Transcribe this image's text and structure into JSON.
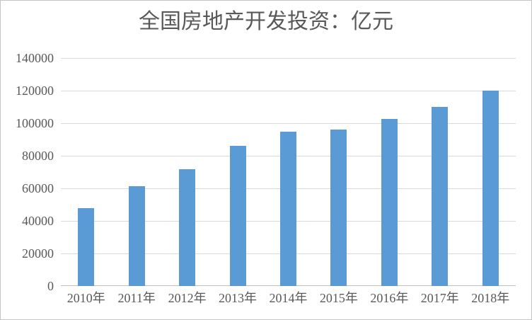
{
  "colors": {
    "bar": "#5b9bd5",
    "gridline": "#d9d9d9",
    "axis_line": "#bfbfbf",
    "text": "#595959",
    "frame_border": "#c4c4c4"
  },
  "chart_data": {
    "type": "bar",
    "title": "全国房地产开发投资：亿元",
    "categories": [
      "2010年",
      "2011年",
      "2012年",
      "2013年",
      "2014年",
      "2015年",
      "2016年",
      "2017年",
      "2018年"
    ],
    "values": [
      48000,
      61500,
      71800,
      86000,
      95000,
      96000,
      102600,
      110000,
      120000
    ],
    "xlabel": "",
    "ylabel": "",
    "ylim": [
      0,
      140000
    ],
    "yticks": [
      0,
      20000,
      40000,
      60000,
      80000,
      100000,
      120000,
      140000
    ],
    "grid": true,
    "legend": false
  }
}
